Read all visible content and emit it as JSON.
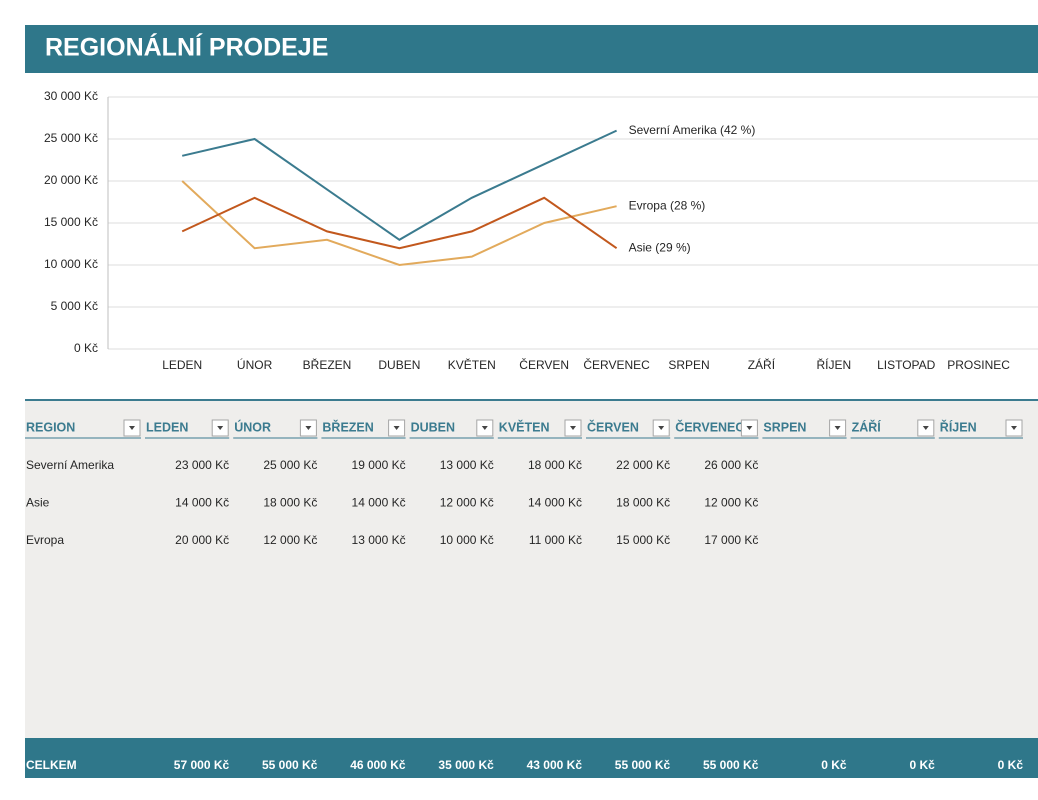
{
  "header": {
    "title": "REGIONÁLNÍ PRODEJE"
  },
  "chart_data": {
    "type": "line",
    "categories": [
      "LEDEN",
      "ÚNOR",
      "BŘEZEN",
      "DUBEN",
      "KVĚTEN",
      "ČERVEN",
      "ČERVENEC",
      "SRPEN",
      "ZÁŘÍ",
      "ŘÍJEN",
      "LISTOPAD",
      "PROSINEC"
    ],
    "series": [
      {
        "name": "Severní Amerika (42 %)",
        "color": "#3b7b8f",
        "values": [
          23000,
          25000,
          19000,
          13000,
          18000,
          22000,
          26000,
          null,
          null,
          null,
          null,
          null
        ]
      },
      {
        "name": "Evropa (28 %)",
        "color": "#e2aa5c",
        "values": [
          20000,
          12000,
          13000,
          10000,
          11000,
          15000,
          17000,
          null,
          null,
          null,
          null,
          null
        ]
      },
      {
        "name": "Asie (29 %)",
        "color": "#c2581d",
        "values": [
          14000,
          18000,
          14000,
          12000,
          14000,
          18000,
          12000,
          null,
          null,
          null,
          null,
          null
        ]
      }
    ],
    "ylim": [
      0,
      30000
    ],
    "yticks": [
      {
        "value": 0,
        "label": "0 Kč"
      },
      {
        "value": 5000,
        "label": "5 000 Kč"
      },
      {
        "value": 10000,
        "label": "10 000 Kč"
      },
      {
        "value": 15000,
        "label": "15 000 Kč"
      },
      {
        "value": 20000,
        "label": "20 000 Kč"
      },
      {
        "value": 25000,
        "label": "25 000 Kč"
      },
      {
        "value": 30000,
        "label": "30 000 Kč"
      }
    ],
    "grid": true
  },
  "table": {
    "columns": [
      "REGION",
      "LEDEN",
      "ÚNOR",
      "BŘEZEN",
      "DUBEN",
      "KVĚTEN",
      "ČERVEN",
      "ČERVENEC",
      "SRPEN",
      "ZÁŘÍ",
      "ŘÍJEN"
    ],
    "rows": [
      [
        "Severní Amerika",
        "23 000 Kč",
        "25 000 Kč",
        "19 000 Kč",
        "13 000 Kč",
        "18 000 Kč",
        "22 000 Kč",
        "26 000 Kč"
      ],
      [
        "Asie",
        "14 000 Kč",
        "18 000 Kč",
        "14 000 Kč",
        "12 000 Kč",
        "14 000 Kč",
        "18 000 Kč",
        "12 000 Kč"
      ],
      [
        "Evropa",
        "20 000 Kč",
        "12 000 Kč",
        "13 000 Kč",
        "10 000 Kč",
        "11 000 Kč",
        "15 000 Kč",
        "17 000 Kč"
      ]
    ],
    "total": [
      "CELKEM",
      "57 000 Kč",
      "55 000 Kč",
      "46 000 Kč",
      "35 000 Kč",
      "43 000 Kč",
      "55 000 Kč",
      "55 000 Kč",
      "0 Kč",
      "0 Kč",
      "0 Kč"
    ]
  }
}
